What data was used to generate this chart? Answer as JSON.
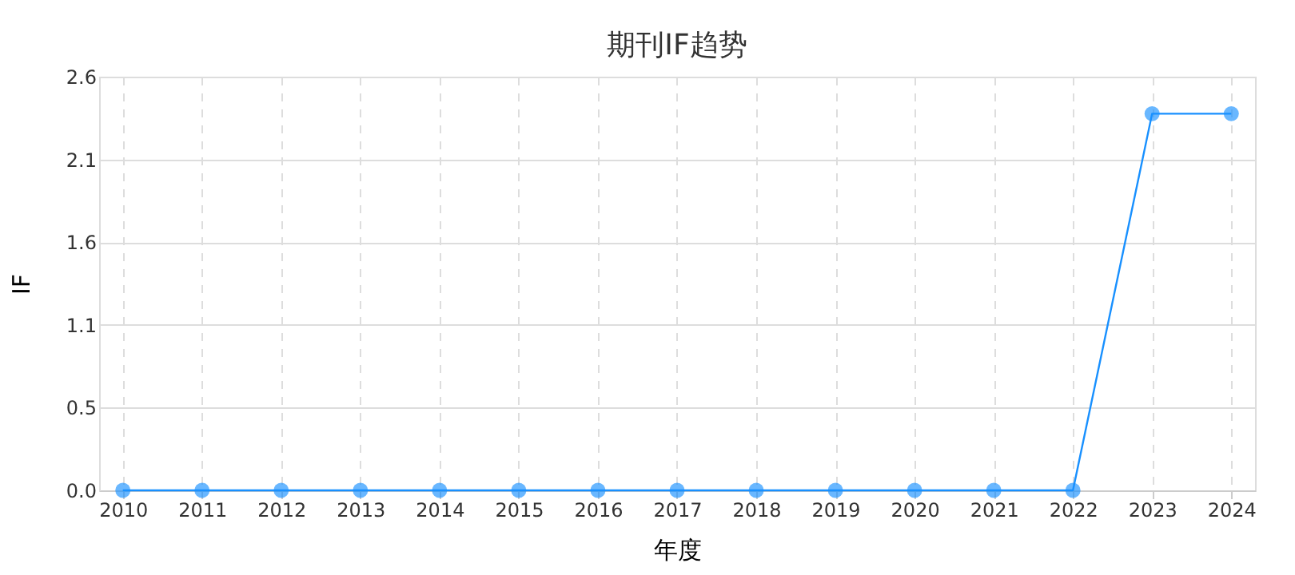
{
  "chart_data": {
    "type": "line",
    "title": "期刊IF趋势",
    "xlabel": "年度",
    "ylabel": "IF",
    "categories": [
      "2010",
      "2011",
      "2012",
      "2013",
      "2014",
      "2015",
      "2016",
      "2017",
      "2018",
      "2019",
      "2020",
      "2021",
      "2022",
      "2023",
      "2024"
    ],
    "series": [
      {
        "color": "#1890ff",
        "values": [
          0,
          0,
          0,
          0,
          0,
          0,
          0,
          0,
          0,
          0,
          0,
          0,
          0,
          2.39,
          2.39
        ]
      }
    ],
    "ylim": [
      0,
      2.625
    ],
    "yticks": [
      {
        "value": 0,
        "label": "0.0"
      },
      {
        "value": 0.525,
        "label": "0.5"
      },
      {
        "value": 1.05,
        "label": "1.1"
      },
      {
        "value": 1.575,
        "label": "1.6"
      },
      {
        "value": 2.1,
        "label": "2.1"
      },
      {
        "value": 2.625,
        "label": "2.6"
      }
    ],
    "grid": true,
    "legend": false,
    "marker": "circle",
    "line_style": "solid"
  }
}
